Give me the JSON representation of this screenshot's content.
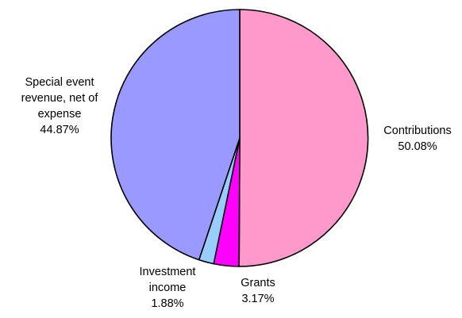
{
  "chart_data": {
    "type": "pie",
    "title": "",
    "slices": [
      {
        "name": "contributions",
        "label_lines": [
          "Contributions"
        ],
        "percent_label": "50.08%",
        "value": 50.08,
        "color": "#ff99cc"
      },
      {
        "name": "grants",
        "label_lines": [
          "Grants"
        ],
        "percent_label": "3.17%",
        "value": 3.17,
        "color": "#ff00ff"
      },
      {
        "name": "investment-income",
        "label_lines": [
          "Investment",
          "income"
        ],
        "percent_label": "1.88%",
        "value": 1.88,
        "color": "#99ccff"
      },
      {
        "name": "special-event-revenue",
        "label_lines": [
          "Special event",
          "revenue, net of",
          "expense"
        ],
        "percent_label": "44.87%",
        "value": 44.87,
        "color": "#9999ff"
      }
    ],
    "start": "12 o'clock",
    "direction": "clockwise",
    "border_color": "#000000",
    "legend": "none"
  }
}
